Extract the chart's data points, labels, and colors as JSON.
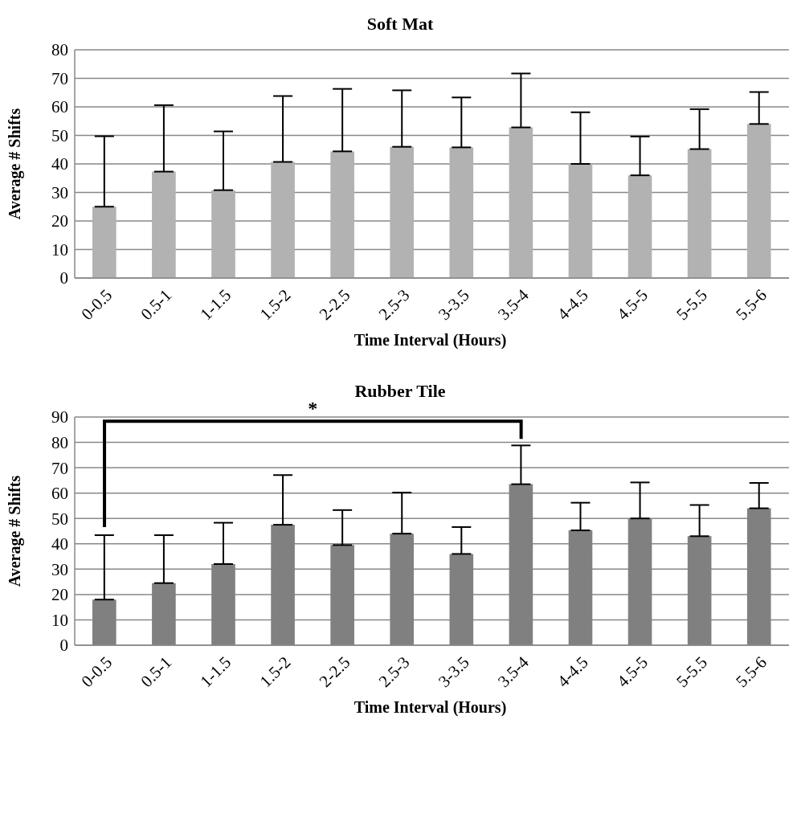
{
  "chart_data": [
    {
      "type": "bar",
      "title": "Soft Mat",
      "xlabel": "Time Interval (Hours)",
      "ylabel": "Average # Shifts",
      "categories": [
        "0-0.5",
        "0.5-1",
        "1-1.5",
        "1.5-2",
        "2-2.5",
        "2.5-3",
        "3-3.5",
        "3.5-4",
        "4-4.5",
        "4.5-5",
        "5-5.5",
        "5.5-6"
      ],
      "values": [
        25,
        37.3,
        30.8,
        40.7,
        44.4,
        46,
        45.8,
        52.8,
        40,
        36,
        45.2,
        54
      ],
      "errors": [
        [
          25,
          49.7
        ],
        [
          37.3,
          60.6
        ],
        [
          30.8,
          51.4
        ],
        [
          40.7,
          63.8
        ],
        [
          44.4,
          66.3
        ],
        [
          46,
          65.8
        ],
        [
          45.8,
          63.3
        ],
        [
          52.8,
          71.7
        ],
        [
          40,
          58.1
        ],
        [
          36,
          49.6
        ],
        [
          45.2,
          59.2
        ],
        [
          54,
          65.2
        ]
      ],
      "color": "#b2b2b2",
      "ylim": [
        0,
        80
      ],
      "yticks": [
        0,
        10,
        20,
        30,
        40,
        50,
        60,
        70,
        80
      ],
      "grid": "y",
      "legend": false
    },
    {
      "type": "bar",
      "title": "Rubber Tile",
      "xlabel": "Time Interval (Hours)",
      "ylabel": "Average # Shifts",
      "categories": [
        "0-0.5",
        "0.5-1",
        "1-1.5",
        "1.5-2",
        "2-2.5",
        "2.5-3",
        "3-3.5",
        "3.5-4",
        "4-4.5",
        "4.5-5",
        "5-5.5",
        "5.5-6"
      ],
      "values": [
        18,
        24.5,
        32,
        47.5,
        39.5,
        44,
        36,
        63.5,
        45.3,
        50,
        43,
        54
      ],
      "errors": [
        [
          18,
          43.4
        ],
        [
          24.5,
          43.4
        ],
        [
          32,
          48.3
        ],
        [
          47.5,
          67.1
        ],
        [
          39.5,
          53.3
        ],
        [
          44,
          60.2
        ],
        [
          36,
          46.6
        ],
        [
          63.5,
          78.8
        ],
        [
          45.3,
          56.2
        ],
        [
          50,
          64.2
        ],
        [
          43,
          55.3
        ],
        [
          54,
          64
        ]
      ],
      "color": "#808080",
      "ylim": [
        0,
        90
      ],
      "yticks": [
        0,
        10,
        20,
        30,
        40,
        50,
        60,
        70,
        80,
        90
      ],
      "grid": "y",
      "legend": false,
      "annotations": [
        "*"
      ]
    }
  ]
}
